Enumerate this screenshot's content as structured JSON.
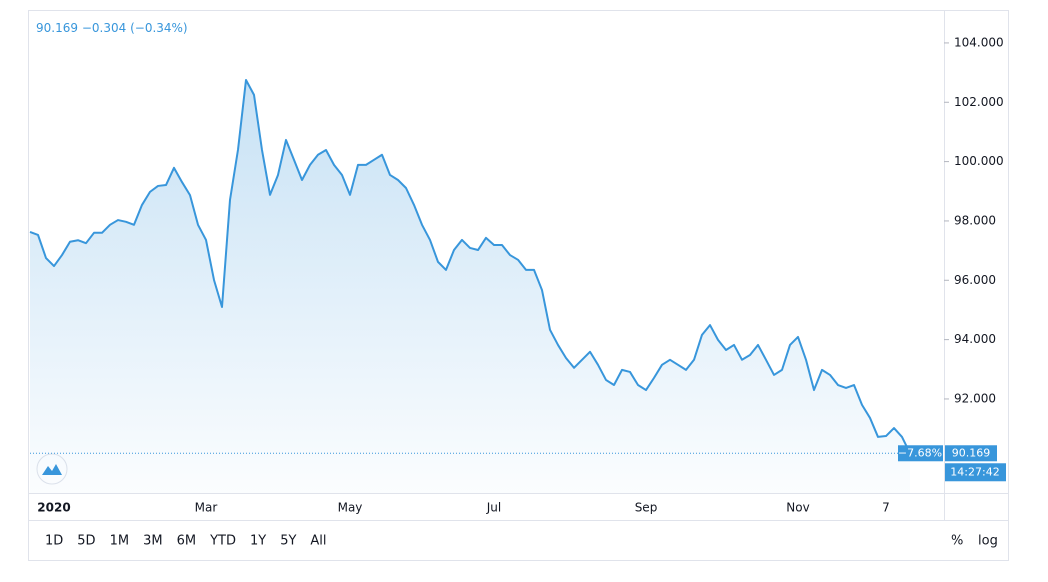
{
  "chart_data": {
    "type": "line",
    "header": {
      "last": "90.169",
      "change": "−0.304",
      "change_pct": "(−0.34%)"
    },
    "categories": [
      null,
      null,
      null,
      "2020",
      null,
      null,
      null,
      null,
      null,
      null,
      null,
      null,
      null,
      null,
      null,
      null,
      null,
      null,
      null,
      null,
      null,
      null,
      "Mar",
      null,
      null,
      null,
      null,
      null,
      null,
      null,
      null,
      null,
      null,
      null,
      null,
      null,
      null,
      null,
      null,
      null,
      "May",
      null,
      null,
      null,
      null,
      null,
      null,
      null,
      null,
      null,
      null,
      null,
      null,
      null,
      null,
      null,
      null,
      null,
      "Jul",
      null,
      null,
      null,
      null,
      null,
      null,
      null,
      null,
      null,
      null,
      null,
      null,
      null,
      null,
      null,
      null,
      null,
      null,
      "Sep",
      null,
      null,
      null,
      null,
      null,
      null,
      null,
      null,
      null,
      null,
      null,
      null,
      null,
      null,
      null,
      null,
      null,
      null,
      "Nov",
      null,
      null,
      null,
      null,
      null,
      null,
      null,
      null,
      null,
      null,
      "7",
      null,
      null,
      null
    ],
    "values": [
      97.63,
      97.53,
      96.75,
      96.48,
      96.85,
      97.3,
      97.35,
      97.25,
      97.6,
      97.6,
      97.87,
      98.03,
      97.97,
      97.87,
      98.54,
      98.98,
      99.18,
      99.21,
      99.79,
      99.31,
      98.87,
      97.87,
      97.36,
      96.01,
      95.1,
      98.71,
      100.4,
      102.75,
      102.25,
      100.39,
      98.88,
      99.55,
      100.73,
      100.06,
      99.38,
      99.89,
      100.23,
      100.39,
      99.89,
      99.55,
      98.88,
      99.89,
      99.89,
      100.06,
      100.23,
      99.55,
      99.38,
      99.11,
      98.54,
      97.87,
      97.36,
      96.62,
      96.35,
      97.02,
      97.36,
      97.09,
      97.02,
      97.43,
      97.19,
      97.19,
      96.85,
      96.69,
      96.35,
      96.35,
      95.67,
      94.33,
      93.82,
      93.38,
      93.05,
      93.32,
      93.59,
      93.15,
      92.64,
      92.47,
      92.98,
      92.91,
      92.47,
      92.3,
      92.71,
      93.15,
      93.32,
      93.15,
      92.98,
      93.32,
      94.16,
      94.49,
      93.99,
      93.65,
      93.82,
      93.32,
      93.48,
      93.82,
      93.32,
      92.81,
      92.98,
      93.82,
      94.09,
      93.32,
      92.3,
      92.98,
      92.81,
      92.47,
      92.37,
      92.47,
      91.8,
      91.36,
      90.72,
      90.75,
      91.02,
      90.72,
      90.169
    ],
    "color": "#3896db",
    "ylim": [
      88.83,
      105.11
    ],
    "yticks": [
      {
        "value": 92,
        "label": "92.000"
      },
      {
        "value": 94,
        "label": "94.000"
      },
      {
        "value": 96,
        "label": "96.000"
      },
      {
        "value": 98,
        "label": "98.000"
      },
      {
        "value": 100,
        "label": "100.000"
      },
      {
        "value": 102,
        "label": "102.000"
      },
      {
        "value": 104,
        "label": "104.000"
      }
    ],
    "grid": false,
    "log_scale": false,
    "pct_change_label": "−7.68%",
    "time_label": "14:27:42",
    "ranges": [
      "1D",
      "5D",
      "1M",
      "3M",
      "6M",
      "YTD",
      "1Y",
      "5Y",
      "All"
    ],
    "scale_buttons": [
      "%",
      "log"
    ]
  }
}
